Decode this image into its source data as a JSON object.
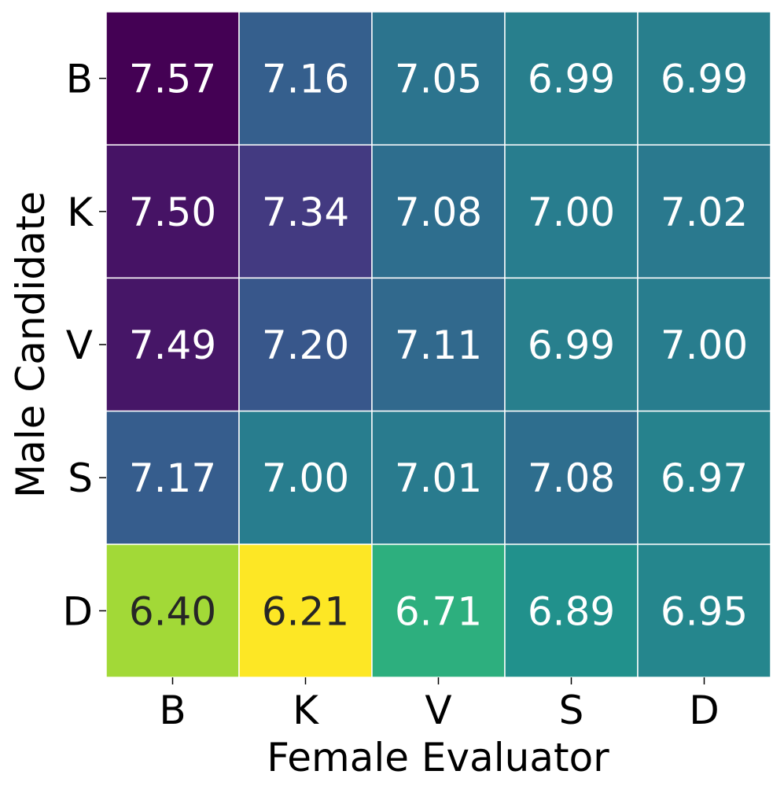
{
  "chart_data": {
    "type": "heatmap",
    "title": "",
    "xlabel": "Female Evaluator",
    "ylabel": "Male Candidate",
    "x_categories": [
      "B",
      "K",
      "V",
      "S",
      "D"
    ],
    "y_categories": [
      "B",
      "K",
      "V",
      "S",
      "D"
    ],
    "values": [
      [
        7.57,
        7.16,
        7.05,
        6.99,
        6.99
      ],
      [
        7.5,
        7.34,
        7.08,
        7.0,
        7.02
      ],
      [
        7.49,
        7.2,
        7.11,
        6.99,
        7.0
      ],
      [
        7.17,
        7.0,
        7.01,
        7.08,
        6.97
      ],
      [
        6.4,
        6.21,
        6.71,
        6.89,
        6.95
      ]
    ],
    "value_format": "0.00",
    "colormap": "viridis_r",
    "color_range": [
      6.21,
      7.57
    ],
    "colorbar": false,
    "annotated": true
  }
}
